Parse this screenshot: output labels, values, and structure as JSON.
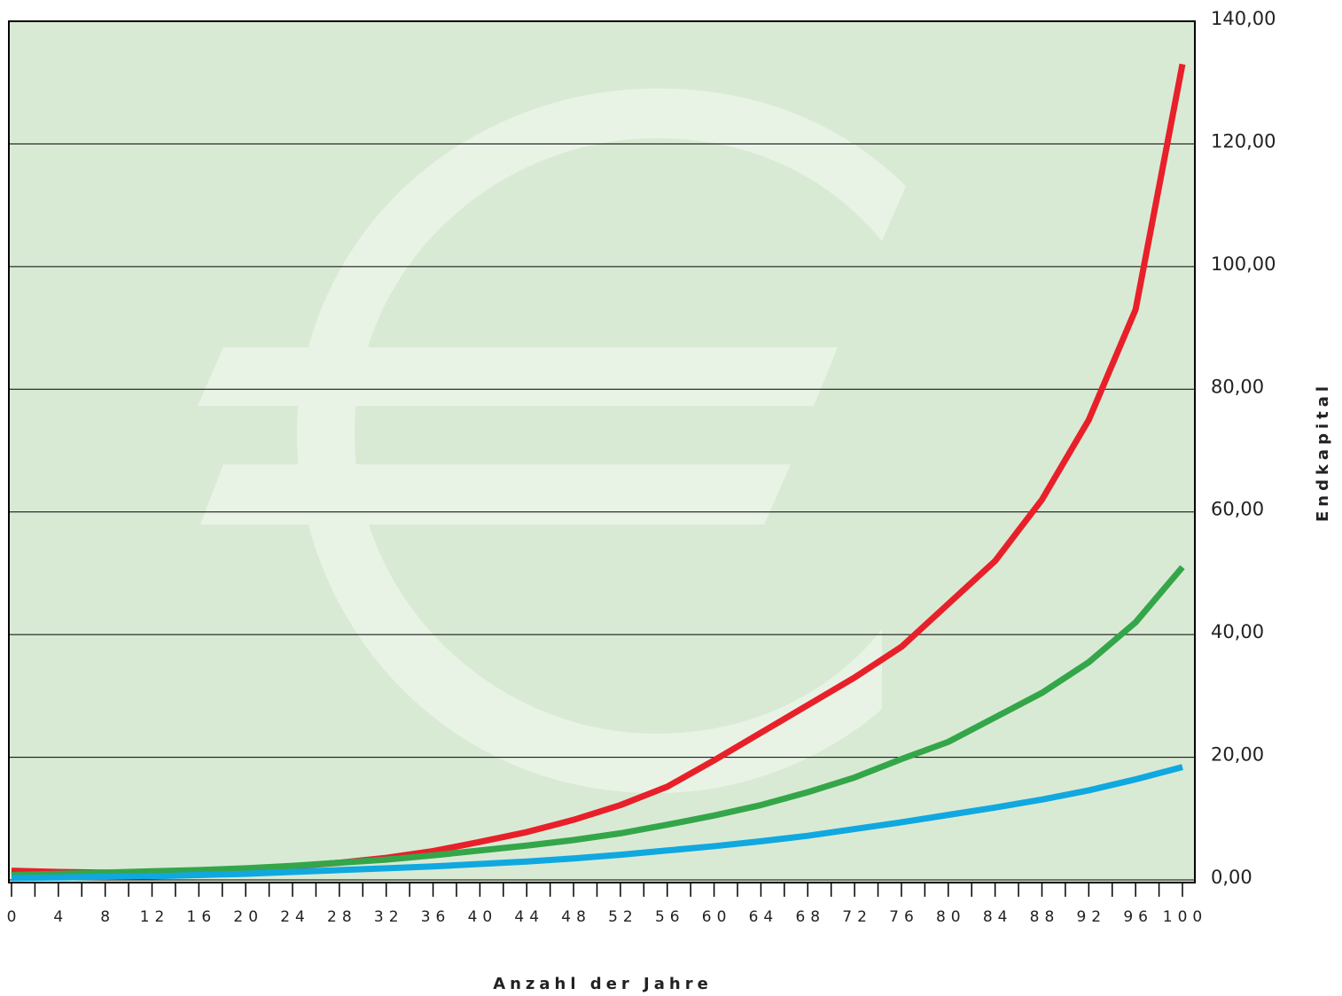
{
  "chart_data": {
    "type": "line",
    "x_title": "Anzahl der Jahre",
    "y_title": "Endkapital",
    "x": [
      0,
      4,
      8,
      12,
      16,
      20,
      24,
      28,
      32,
      36,
      40,
      44,
      48,
      52,
      56,
      60,
      64,
      68,
      72,
      76,
      80,
      84,
      88,
      92,
      96,
      100
    ],
    "series": [
      {
        "color": "#e8202a",
        "values": [
          1.5,
          1.3,
          1.2,
          1.2,
          1.3,
          1.6,
          2.2,
          2.8,
          3.6,
          4.7,
          6.2,
          7.8,
          9.8,
          12.2,
          15.2,
          19.5,
          24,
          28.5,
          33,
          38,
          45,
          52,
          62,
          75,
          93,
          133
        ]
      },
      {
        "color": "#34a64a",
        "values": [
          0.8,
          1.0,
          1.2,
          1.4,
          1.6,
          1.9,
          2.3,
          2.8,
          3.3,
          4.0,
          4.8,
          5.6,
          6.5,
          7.6,
          9.0,
          10.5,
          12.2,
          14.3,
          16.7,
          19.7,
          22.5,
          26.5,
          30.5,
          35.5,
          42,
          51
        ]
      },
      {
        "color": "#10a8e0",
        "values": [
          0.3,
          0.4,
          0.5,
          0.6,
          0.8,
          1.0,
          1.3,
          1.6,
          1.9,
          2.2,
          2.6,
          3.0,
          3.5,
          4.1,
          4.8,
          5.5,
          6.3,
          7.2,
          8.3,
          9.4,
          10.6,
          11.8,
          13.1,
          14.6,
          16.4,
          18.4
        ]
      }
    ],
    "xlim": [
      0,
      100
    ],
    "xticks": [
      0,
      4,
      8,
      12,
      16,
      20,
      24,
      28,
      32,
      36,
      40,
      44,
      48,
      52,
      56,
      60,
      64,
      68,
      72,
      76,
      80,
      84,
      88,
      92,
      96,
      100
    ],
    "x_minor_ticks": [
      2,
      6,
      10,
      14,
      18,
      22,
      26,
      30,
      34,
      38,
      42,
      46,
      50,
      54,
      58,
      62,
      66,
      70,
      74,
      78,
      82,
      86,
      90,
      94,
      98
    ],
    "ylim": [
      0,
      140
    ],
    "yticks": [
      {
        "value": 0,
        "label": "0,00"
      },
      {
        "value": 20,
        "label": "20,00"
      },
      {
        "value": 40,
        "label": "40,00"
      },
      {
        "value": 60,
        "label": "60,00"
      },
      {
        "value": 80,
        "label": "80,00"
      },
      {
        "value": 100,
        "label": "100,00"
      },
      {
        "value": 120,
        "label": "120,00"
      },
      {
        "value": 140,
        "label": "140,00"
      }
    ],
    "grid": true
  }
}
